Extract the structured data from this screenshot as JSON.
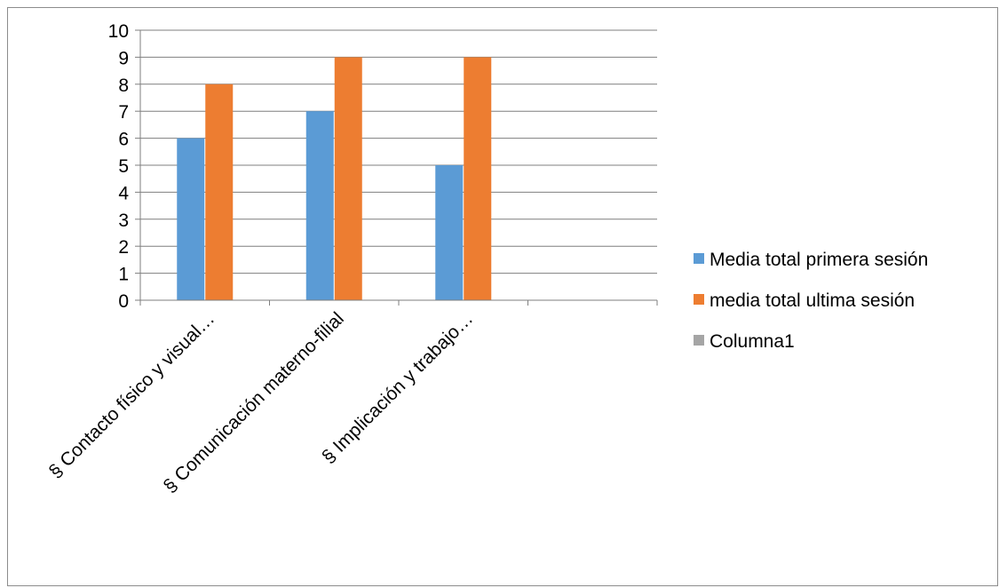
{
  "chart_data": {
    "type": "bar",
    "title": "",
    "xlabel": "",
    "ylabel": "",
    "ylim": [
      0,
      10
    ],
    "yticks": [
      0,
      1,
      2,
      3,
      4,
      5,
      6,
      7,
      8,
      9,
      10
    ],
    "grid": true,
    "legend_position": "right",
    "categories": [
      "§  Contacto físico y visual…",
      "§  Comunicación materno-filial",
      "§  Implicación y trabajo…",
      ""
    ],
    "series": [
      {
        "name": "Media total primera sesión",
        "color": "#5b9bd5",
        "values": [
          6,
          7,
          5,
          null
        ]
      },
      {
        "name": "media total ultima sesión",
        "color": "#ed7d31",
        "values": [
          8,
          9,
          9,
          null
        ]
      },
      {
        "name": "Columna1",
        "color": "#a5a5a5",
        "values": [
          null,
          null,
          null,
          null
        ]
      }
    ]
  }
}
